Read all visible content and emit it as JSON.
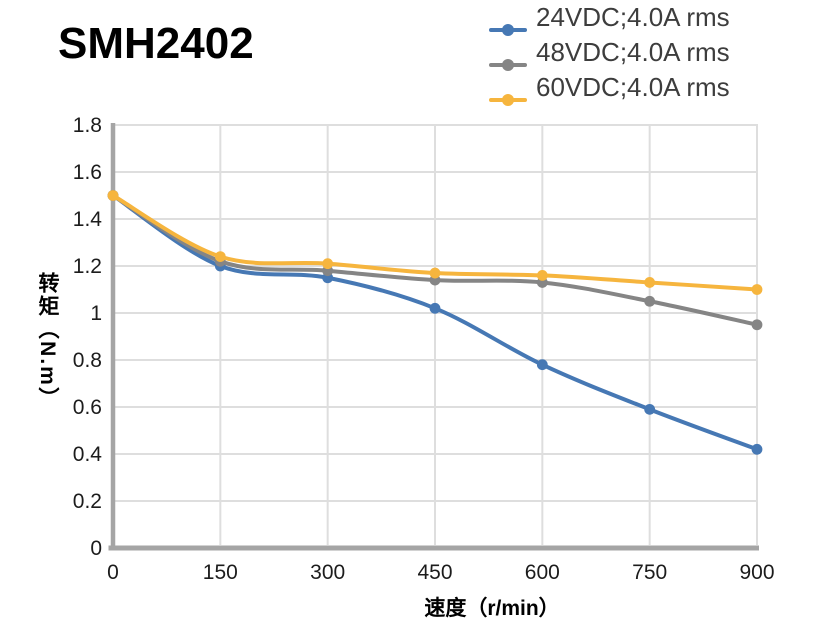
{
  "title": "SMH2402",
  "colors": {
    "background": "#ffffff",
    "spine": "#a5a5a5",
    "grid": "#dedede",
    "tick_text": "#1c1c1c",
    "legend_text": "#3d3d3d",
    "title_text": "#000000"
  },
  "chart_data": {
    "type": "line",
    "title": "SMH2402",
    "x": [
      0,
      150,
      300,
      450,
      600,
      750,
      900
    ],
    "series": [
      {
        "name": "24VDC;4.0A rms",
        "color": "#4678b4",
        "values": [
          1.5,
          1.2,
          1.15,
          1.02,
          0.78,
          0.59,
          0.42
        ]
      },
      {
        "name": "48VDC;4.0A rms",
        "color": "#858585",
        "values": [
          1.5,
          1.22,
          1.18,
          1.14,
          1.13,
          1.05,
          0.95
        ]
      },
      {
        "name": "60VDC;4.0A rms",
        "color": "#f6b53e",
        "values": [
          1.5,
          1.24,
          1.21,
          1.17,
          1.16,
          1.13,
          1.1
        ]
      }
    ],
    "xlabel": "速度（r/min）",
    "ylabel": "转矩（N.m）",
    "xlim": [
      0,
      900
    ],
    "ylim": [
      0,
      1.8
    ],
    "xticks": [
      0,
      150,
      300,
      450,
      600,
      750,
      900
    ],
    "yticks": [
      0,
      0.2,
      0.4,
      0.6,
      0.8,
      1,
      1.2,
      1.4,
      1.6,
      1.8
    ],
    "grid": true,
    "smooth": true,
    "legend_position": "top-right"
  }
}
